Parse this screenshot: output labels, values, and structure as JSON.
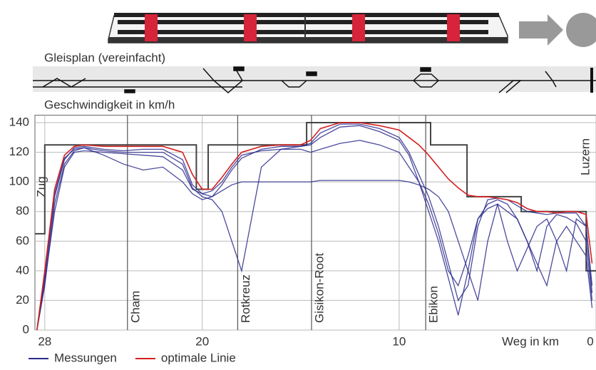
{
  "chart_data": {
    "type": "line",
    "section_title": "Gleisplan (vereinfacht)",
    "y_label": "Geschwindigkeit in km/h",
    "x_label": "Weg in km",
    "xlim": [
      28.5,
      0
    ],
    "ylim": [
      0,
      145
    ],
    "xticks": [
      28,
      20,
      10,
      0
    ],
    "yticks": [
      0,
      20,
      40,
      60,
      80,
      100,
      120,
      140
    ],
    "grid": true,
    "stations": [
      {
        "name": "Zug",
        "km": 28
      },
      {
        "name": "Cham",
        "km": 23.8
      },
      {
        "name": "Rotkreuz",
        "km": 18.2
      },
      {
        "name": "Gisikon-Root",
        "km": 14.45
      },
      {
        "name": "Ebikon",
        "km": 8.65
      },
      {
        "name": "Luzern",
        "km": 0
      }
    ],
    "speed_limit": {
      "color": "#444444",
      "x": [
        28.5,
        28,
        28,
        20.3,
        20.3,
        19.7,
        19.7,
        14.7,
        14.7,
        8.4,
        8.4,
        6.55,
        6.55,
        3.8,
        3.8,
        0.5,
        0.5,
        0
      ],
      "values": [
        65,
        65,
        125,
        125,
        95,
        95,
        125,
        125,
        140,
        140,
        125,
        125,
        90,
        90,
        80,
        80,
        40,
        40
      ]
    },
    "x": [
      28.4,
      28,
      27.5,
      27,
      26.5,
      26,
      25,
      24,
      23,
      22,
      21,
      20.5,
      20,
      19.5,
      19,
      18.5,
      18,
      17,
      16,
      15,
      14.5,
      14,
      13,
      12,
      11,
      10,
      9.5,
      9,
      8.5,
      8,
      7.5,
      7,
      6.5,
      6,
      5.5,
      5,
      4.5,
      4,
      3.5,
      3,
      2.5,
      2,
      1.5,
      1,
      0.5,
      0.2
    ],
    "series": [
      {
        "name": "Messungen",
        "color": "#2a2a8c",
        "runs": [
          [
            0,
            35,
            90,
            115,
            123,
            124,
            122,
            121,
            122,
            122,
            115,
            98,
            92,
            90,
            98,
            108,
            116,
            122,
            124,
            124,
            126,
            133,
            139,
            139,
            136,
            130,
            120,
            105,
            90,
            70,
            45,
            20,
            30,
            70,
            88,
            89,
            88,
            84,
            80,
            79,
            78,
            79,
            79,
            79,
            70,
            30
          ],
          [
            0,
            30,
            85,
            112,
            121,
            123,
            121,
            120,
            120,
            120,
            112,
            96,
            90,
            88,
            80,
            60,
            40,
            110,
            122,
            124,
            125,
            130,
            137,
            138,
            134,
            128,
            118,
            100,
            80,
            60,
            35,
            10,
            40,
            75,
            85,
            88,
            85,
            75,
            60,
            40,
            70,
            78,
            76,
            72,
            60,
            20
          ],
          [
            0,
            38,
            92,
            116,
            122,
            123,
            118,
            112,
            108,
            110,
            100,
            92,
            88,
            90,
            94,
            98,
            100,
            100,
            100,
            100,
            100,
            101,
            101,
            101,
            101,
            101,
            100,
            98,
            95,
            90,
            80,
            60,
            40,
            20,
            60,
            85,
            80,
            75,
            60,
            45,
            30,
            60,
            70,
            60,
            50,
            15
          ],
          [
            0,
            32,
            80,
            110,
            120,
            121,
            120,
            119,
            118,
            117,
            108,
            95,
            92,
            94,
            100,
            110,
            118,
            121,
            122,
            122,
            120,
            122,
            126,
            128,
            125,
            120,
            110,
            100,
            85,
            65,
            40,
            30,
            50,
            75,
            82,
            85,
            60,
            40,
            55,
            70,
            75,
            60,
            40,
            75,
            70,
            25
          ]
        ]
      },
      {
        "name": "optimale Linie",
        "color": "#d42020",
        "values": [
          0,
          40,
          95,
          118,
          124,
          125,
          124,
          124,
          124,
          124,
          120,
          105,
          95,
          95,
          103,
          112,
          120,
          124,
          125,
          125,
          128,
          136,
          140,
          140,
          138,
          135,
          130,
          125,
          118,
          110,
          102,
          96,
          91,
          90,
          90,
          89,
          88,
          86,
          82,
          80,
          80,
          79,
          80,
          80,
          78,
          45
        ]
      }
    ]
  }
}
